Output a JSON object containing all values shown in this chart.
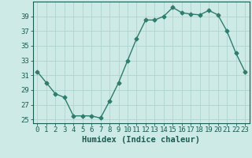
{
  "xlabel": "Humidex (Indice chaleur)",
  "x_values": [
    0,
    1,
    2,
    3,
    4,
    5,
    6,
    7,
    8,
    9,
    10,
    11,
    12,
    13,
    14,
    15,
    16,
    17,
    18,
    19,
    20,
    21,
    22,
    23
  ],
  "y_values": [
    31.5,
    30.0,
    28.5,
    28.0,
    25.5,
    25.5,
    25.5,
    25.2,
    27.5,
    30.0,
    33.0,
    36.0,
    38.5,
    38.5,
    39.0,
    40.2,
    39.5,
    39.3,
    39.2,
    39.8,
    39.2,
    37.0,
    34.0,
    31.5
  ],
  "line_color": "#2e7d6e",
  "marker": "D",
  "marker_size": 2.5,
  "bg_color": "#ceeae6",
  "grid_color": "#aed4cf",
  "ylim": [
    24.5,
    41.0
  ],
  "yticks": [
    25,
    27,
    29,
    31,
    33,
    35,
    37,
    39
  ],
  "xlim": [
    -0.5,
    23.5
  ],
  "xticks": [
    0,
    1,
    2,
    3,
    4,
    5,
    6,
    7,
    8,
    9,
    10,
    11,
    12,
    13,
    14,
    15,
    16,
    17,
    18,
    19,
    20,
    21,
    22,
    23
  ],
  "xlabel_fontsize": 7.5,
  "tick_fontsize": 6.5,
  "line_width": 1.0
}
